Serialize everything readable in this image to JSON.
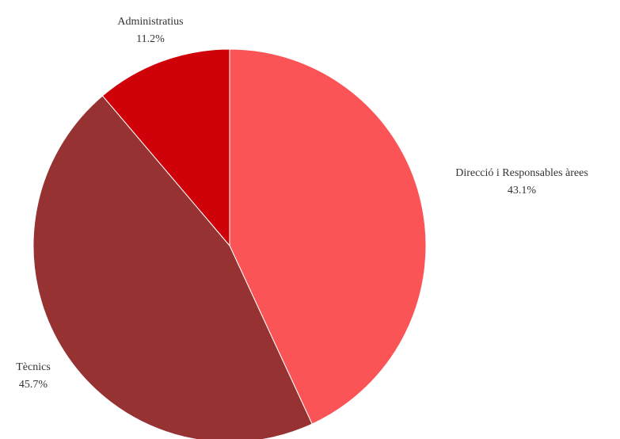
{
  "chart_data": {
    "type": "pie",
    "start_angle_deg": 0,
    "direction": "clockwise",
    "slices": [
      {
        "label": "Direcció i Responsables àrees",
        "value": 43.1,
        "value_label": "43.1%",
        "color": "#fb5457"
      },
      {
        "label": "Tècnics",
        "value": 45.7,
        "value_label": "45.7%",
        "color": "#973233"
      },
      {
        "label": "Administratius",
        "value": 11.2,
        "value_label": "11.2%",
        "color": "#d00209"
      }
    ],
    "slice_border_color": "#ffffff"
  }
}
